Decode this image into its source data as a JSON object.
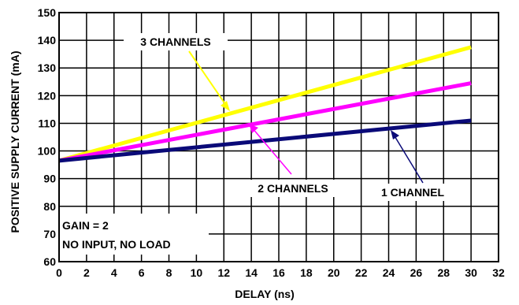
{
  "chart_data": {
    "type": "line",
    "xlabel": "DELAY (ns)",
    "ylabel": "POSITIVE SUPPLY CURRENT (mA)",
    "xlim": [
      0,
      32
    ],
    "ylim": [
      60,
      150
    ],
    "x_ticks": [
      0,
      2,
      4,
      6,
      8,
      10,
      12,
      14,
      16,
      18,
      20,
      22,
      24,
      26,
      28,
      30,
      32
    ],
    "y_ticks": [
      60,
      70,
      80,
      90,
      100,
      110,
      120,
      130,
      140,
      150
    ],
    "grid": true,
    "series": [
      {
        "name": "3 CHANNELS",
        "color": "#ffff00",
        "x": [
          0,
          30
        ],
        "y": [
          96.5,
          137.5
        ]
      },
      {
        "name": "2 CHANNELS",
        "color": "#ff00ff",
        "x": [
          0,
          30
        ],
        "y": [
          96.5,
          124.5
        ]
      },
      {
        "name": "1 CHANNEL",
        "color": "#0a0a78",
        "x": [
          0,
          30
        ],
        "y": [
          96.5,
          111
        ]
      }
    ],
    "annotations": {
      "gain": "GAIN = 2",
      "conditions": "NO INPUT, NO LOAD"
    }
  }
}
